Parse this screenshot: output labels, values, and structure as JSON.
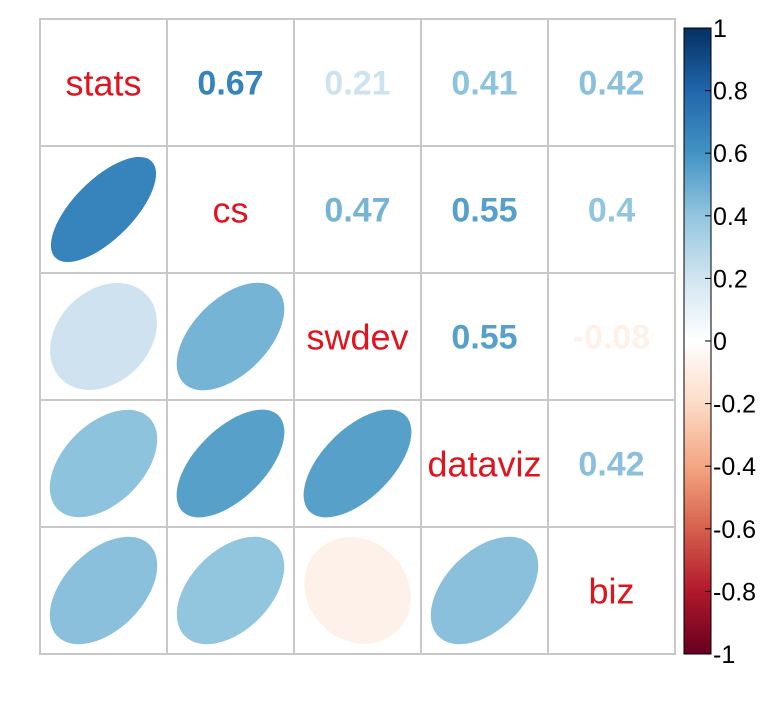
{
  "chart_data": {
    "type": "heatmap",
    "variables": [
      "stats",
      "cs",
      "swdev",
      "dataviz",
      "biz"
    ],
    "matrix": [
      [
        1,
        0.67,
        0.21,
        0.41,
        0.42
      ],
      [
        0.67,
        1,
        0.47,
        0.55,
        0.4
      ],
      [
        0.21,
        0.47,
        1,
        0.55,
        -0.08
      ],
      [
        0.41,
        0.55,
        0.55,
        1,
        0.42
      ],
      [
        0.42,
        0.4,
        -0.08,
        0.42,
        1
      ]
    ],
    "upper_labels": [
      [
        "0.67",
        "0.21",
        "0.41",
        "0.42"
      ],
      [
        "0.47",
        "0.55",
        "0.4"
      ],
      [
        "0.55",
        "-0.08"
      ],
      [
        "0.42"
      ]
    ],
    "upper_method": "number",
    "lower_method": "ellipse",
    "diagonal_label_color": "#e0141e",
    "grid": true,
    "colorbar": {
      "range": [
        -1,
        1
      ],
      "ticks": [
        "1",
        "0.8",
        "0.6",
        "0.4",
        "0.2",
        "0",
        "-0.2",
        "-0.4",
        "-0.6",
        "-0.8",
        "-1"
      ],
      "tick_values": [
        1,
        0.8,
        0.6,
        0.4,
        0.2,
        0,
        -0.2,
        -0.4,
        -0.6,
        -0.8,
        -1
      ],
      "placement": "right",
      "palette": [
        "#67001f",
        "#b2182b",
        "#d6604d",
        "#f4a582",
        "#fddbc7",
        "#ffffff",
        "#d1e5f0",
        "#92c5de",
        "#4393c3",
        "#2166ac",
        "#053061"
      ]
    }
  }
}
